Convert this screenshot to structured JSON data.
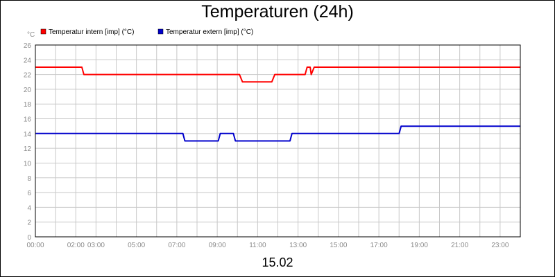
{
  "footer_label": "15.02",
  "chart_data": {
    "type": "line",
    "title": "Temperaturen (24h)",
    "ylabel": "°C",
    "xlabel": "",
    "ylim": [
      0,
      26
    ],
    "xlim_hours": [
      0,
      24
    ],
    "yticks": [
      0,
      2,
      4,
      6,
      8,
      10,
      12,
      14,
      16,
      18,
      20,
      22,
      24,
      26
    ],
    "xtick_labels": [
      "00:00",
      "02:00",
      "03:00",
      "05:00",
      "07:00",
      "09:00",
      "11:00",
      "13:00",
      "15:00",
      "17:00",
      "19:00",
      "21:00",
      "23:00"
    ],
    "xtick_hours": [
      0,
      2.0,
      3.0,
      5.0,
      7.0,
      9.0,
      11.0,
      13.0,
      15.0,
      17.0,
      19.0,
      21.0,
      23.0
    ],
    "grid": true,
    "legend_position": "top-left",
    "series": [
      {
        "name": "Temperatur intern [imp] (°C)",
        "color": "#ff0000",
        "points": [
          [
            0,
            23
          ],
          [
            2.3,
            23
          ],
          [
            2.4,
            22
          ],
          [
            10.1,
            22
          ],
          [
            10.25,
            21
          ],
          [
            11.7,
            21
          ],
          [
            11.85,
            22
          ],
          [
            13.35,
            22
          ],
          [
            13.45,
            23
          ],
          [
            13.6,
            23
          ],
          [
            13.65,
            22
          ],
          [
            13.8,
            23
          ],
          [
            24,
            23
          ]
        ]
      },
      {
        "name": "Temperatur extern [imp] (°C)",
        "color": "#0000cc",
        "points": [
          [
            0,
            14
          ],
          [
            7.3,
            14
          ],
          [
            7.4,
            13
          ],
          [
            9.05,
            13
          ],
          [
            9.15,
            14
          ],
          [
            9.8,
            14
          ],
          [
            9.9,
            13
          ],
          [
            12.6,
            13
          ],
          [
            12.7,
            14
          ],
          [
            18.0,
            14
          ],
          [
            18.1,
            15
          ],
          [
            24,
            15
          ]
        ]
      }
    ]
  }
}
